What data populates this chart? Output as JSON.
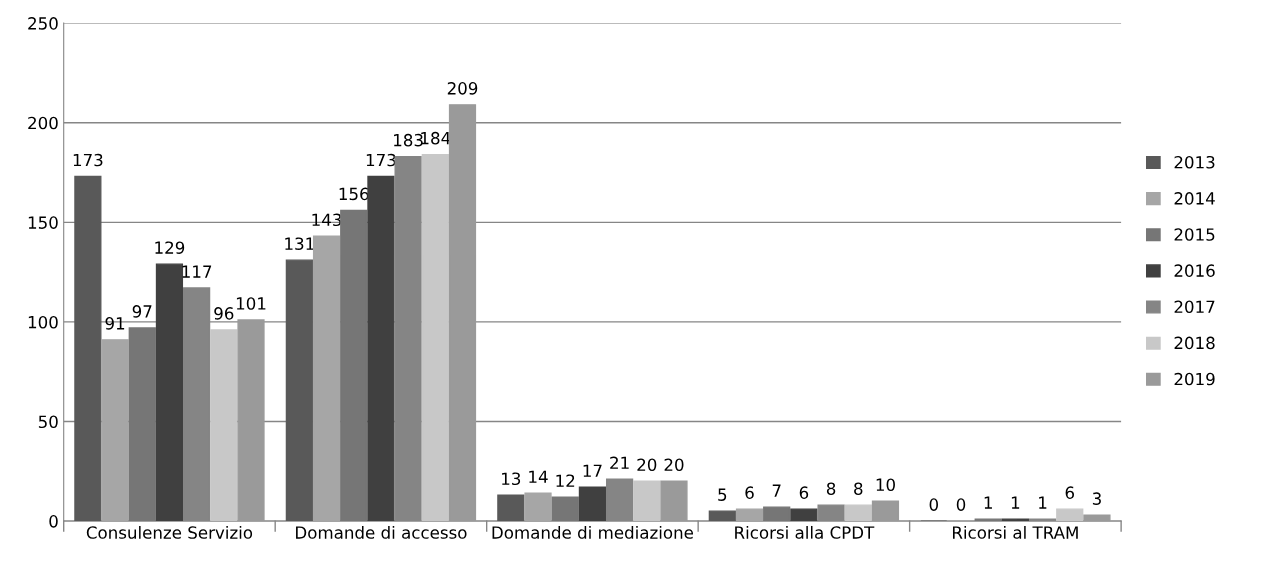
{
  "chart_data": {
    "type": "bar",
    "categories": [
      "Consulenze Servizio",
      "Domande di accesso",
      "Domande di mediazione",
      "Ricorsi alla CPDT",
      "Ricorsi al TRAM"
    ],
    "series": [
      {
        "name": "2013",
        "color": "#595959",
        "values": [
          173,
          131,
          13,
          5,
          0
        ]
      },
      {
        "name": "2014",
        "color": "#a6a6a6",
        "values": [
          91,
          143,
          14,
          6,
          0
        ]
      },
      {
        "name": "2015",
        "color": "#767676",
        "values": [
          97,
          156,
          12,
          7,
          1
        ]
      },
      {
        "name": "2016",
        "color": "#404040",
        "values": [
          129,
          173,
          17,
          6,
          1
        ]
      },
      {
        "name": "2017",
        "color": "#858585",
        "values": [
          117,
          183,
          21,
          8,
          1
        ]
      },
      {
        "name": "2018",
        "color": "#c8c8c8",
        "values": [
          96,
          184,
          20,
          8,
          6
        ]
      },
      {
        "name": "2019",
        "color": "#9a9a9a",
        "values": [
          101,
          209,
          20,
          10,
          3
        ]
      }
    ],
    "ylim": [
      0,
      250
    ],
    "yticks": [
      0,
      50,
      100,
      150,
      200,
      250
    ],
    "grid": "y",
    "legend": "right",
    "data_labels": true
  }
}
